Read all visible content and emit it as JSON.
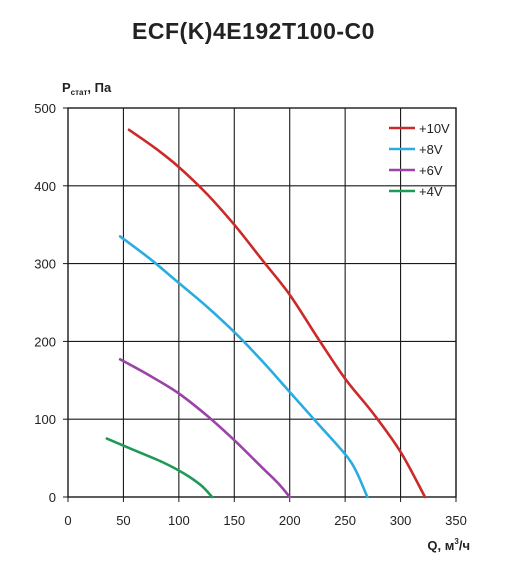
{
  "chart_data": {
    "type": "line",
    "title": "ECF(K)4E192T100-C0",
    "ylabel": {
      "main": "P",
      "sub": "стат",
      "unit": ", Па"
    },
    "xlabel": {
      "main": "Q, м",
      "sup": "3",
      "unit": "/ч"
    },
    "xlim": [
      0,
      350
    ],
    "ylim": [
      0,
      500
    ],
    "xticks": [
      0,
      50,
      100,
      150,
      200,
      250,
      300,
      350
    ],
    "yticks": [
      0,
      100,
      200,
      300,
      400,
      500
    ],
    "grid": true,
    "legend_position": "top-right",
    "series": [
      {
        "name": "+10V",
        "color": "#cc2a2a",
        "points": [
          [
            55,
            472
          ],
          [
            80,
            447
          ],
          [
            100,
            424
          ],
          [
            125,
            390
          ],
          [
            150,
            350
          ],
          [
            175,
            305
          ],
          [
            200,
            260
          ],
          [
            225,
            205
          ],
          [
            250,
            152
          ],
          [
            275,
            108
          ],
          [
            300,
            58
          ],
          [
            322,
            0
          ]
        ]
      },
      {
        "name": "+8V",
        "color": "#2aace0",
        "points": [
          [
            47,
            335
          ],
          [
            75,
            305
          ],
          [
            100,
            275
          ],
          [
            125,
            245
          ],
          [
            150,
            212
          ],
          [
            175,
            175
          ],
          [
            200,
            135
          ],
          [
            225,
            95
          ],
          [
            250,
            55
          ],
          [
            260,
            33
          ],
          [
            270,
            0
          ]
        ]
      },
      {
        "name": "+6V",
        "color": "#9b44a8",
        "points": [
          [
            47,
            177
          ],
          [
            75,
            155
          ],
          [
            100,
            133
          ],
          [
            125,
            105
          ],
          [
            150,
            73
          ],
          [
            175,
            38
          ],
          [
            190,
            17
          ],
          [
            200,
            0
          ]
        ]
      },
      {
        "name": "+4V",
        "color": "#1e9a56",
        "points": [
          [
            35,
            75
          ],
          [
            60,
            60
          ],
          [
            85,
            45
          ],
          [
            105,
            30
          ],
          [
            120,
            15
          ],
          [
            130,
            0
          ]
        ]
      }
    ]
  }
}
